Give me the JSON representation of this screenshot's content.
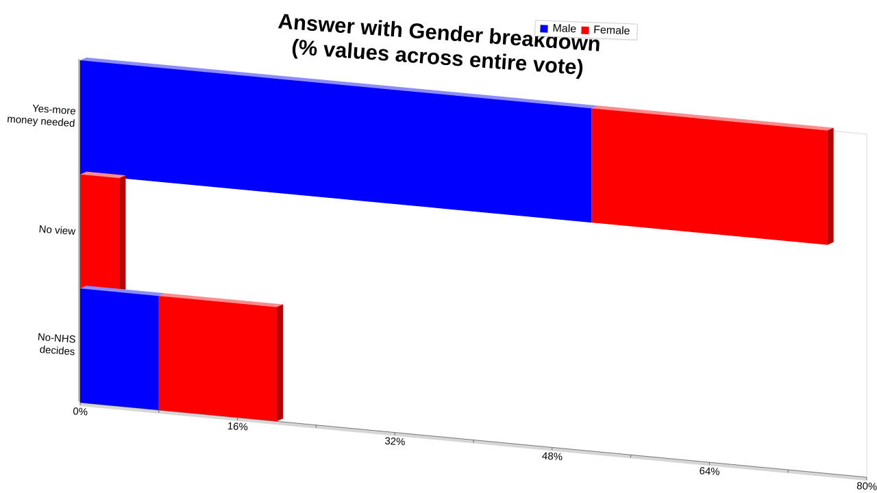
{
  "chart_data": {
    "type": "bar",
    "orientation": "horizontal",
    "stacked": true,
    "title": [
      "Answer with Gender breakdown",
      "(% values across entire vote)"
    ],
    "categories": [
      "Yes-more money needed",
      "No view",
      "No-NHS decides"
    ],
    "category_lines": [
      [
        "Yes-more",
        "money needed"
      ],
      [
        "No view"
      ],
      [
        "No-NHS",
        "decides"
      ]
    ],
    "series": [
      {
        "name": "Male",
        "color": "#0000ff",
        "values": [
          52,
          0,
          8
        ]
      },
      {
        "name": "Female",
        "color": "#ff0000",
        "values": [
          24,
          4,
          12
        ]
      }
    ],
    "xlim": [
      0,
      80
    ],
    "xticks": [
      "0%",
      "16%",
      "32%",
      "48%",
      "64%",
      "80%"
    ],
    "legend": "top-right",
    "grid": false
  }
}
